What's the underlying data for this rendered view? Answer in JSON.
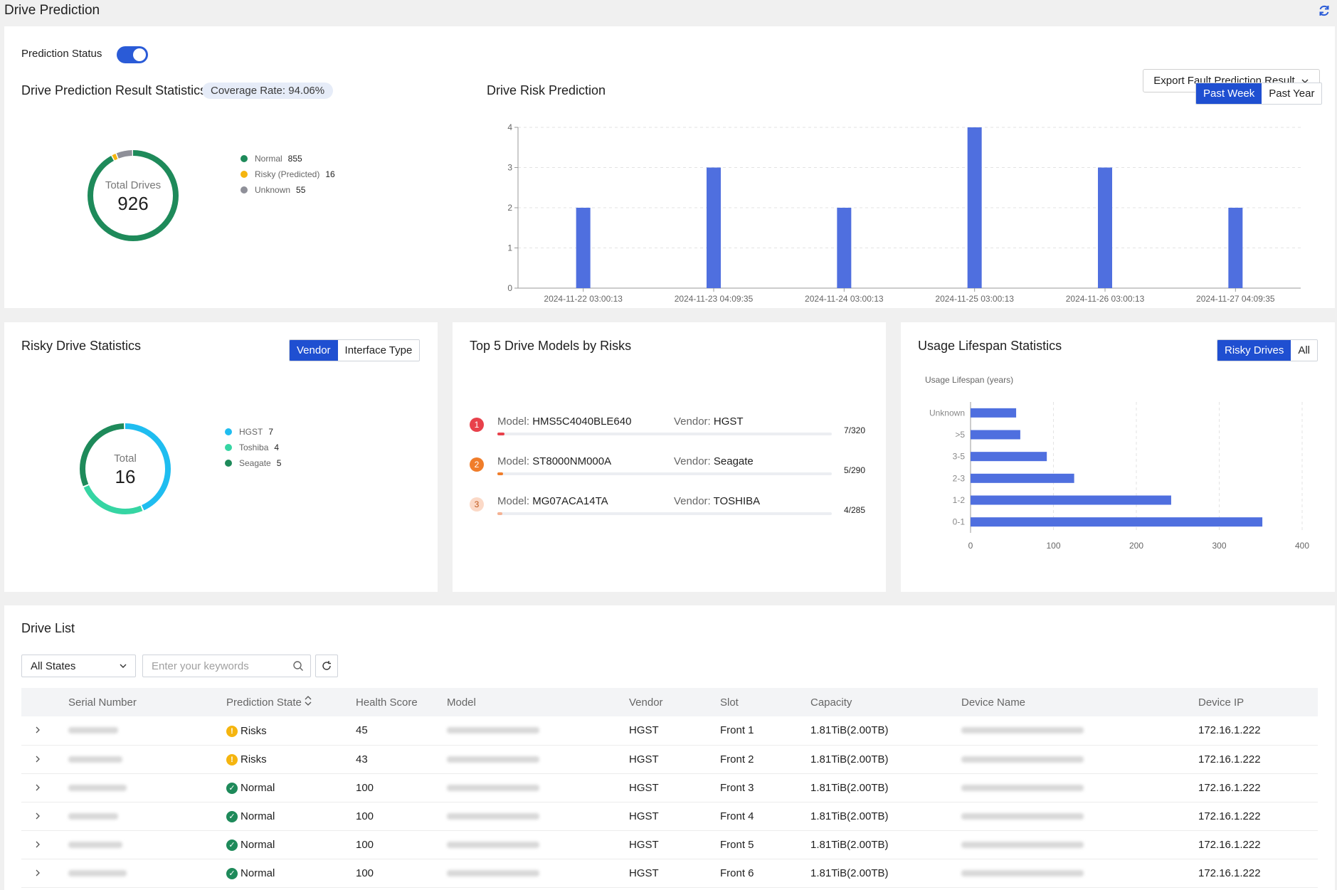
{
  "page": {
    "title": "Drive Prediction"
  },
  "prediction": {
    "status_label": "Prediction Status",
    "export_label": "Export Fault Prediction Result",
    "stats_title": "Drive Prediction Result Statistics",
    "coverage": "Coverage Rate: 94.06%",
    "donut": {
      "center_label": "Total Drives",
      "total": "926"
    },
    "legend": [
      {
        "label": "Normal",
        "value": "855",
        "color": "#1e8a5a"
      },
      {
        "label": "Risky (Predicted)",
        "value": "16",
        "color": "#f5b50f"
      },
      {
        "label": "Unknown",
        "value": "55",
        "color": "#8f9099"
      }
    ]
  },
  "risk_chart": {
    "title": "Drive Risk Prediction",
    "range_options": [
      "Past Week",
      "Past Year"
    ],
    "selected_range": "Past Week"
  },
  "chart_data": [
    {
      "type": "bar",
      "title": "Drive Risk Prediction",
      "categories": [
        "2024-11-22 03:00:13",
        "2024-11-23 04:09:35",
        "2024-11-24 03:00:13",
        "2024-11-25 03:00:13",
        "2024-11-26 03:00:13",
        "2024-11-27 04:09:35"
      ],
      "values": [
        2,
        3,
        2,
        4,
        3,
        2
      ],
      "ylim": [
        0,
        4
      ],
      "yticks": [
        "0",
        "1",
        "2",
        "3",
        "4"
      ],
      "color": "#4f6fdf",
      "grid": true
    },
    {
      "type": "pie",
      "title": "Risky Drive Statistics",
      "categories": [
        "HGST",
        "Toshiba",
        "Seagate"
      ],
      "values": [
        7,
        4,
        5
      ]
    },
    {
      "type": "bar",
      "orientation": "horizontal",
      "title": "Usage Lifespan Statistics",
      "ylabel": "Usage Lifespan (years)",
      "categories": [
        "Unknown",
        ">5",
        "3-5",
        "2-3",
        "1-2",
        "0-1"
      ],
      "values": [
        55,
        60,
        92,
        125,
        242,
        352
      ],
      "xlim": [
        0,
        400
      ],
      "xticks": [
        "0",
        "100",
        "200",
        "300",
        "400"
      ],
      "color": "#4f6fdf"
    }
  ],
  "risky": {
    "title": "Risky Drive Statistics",
    "tabs": [
      "Vendor",
      "Interface Type"
    ],
    "donut": {
      "center_label": "Total",
      "total": "16"
    },
    "legend": [
      {
        "label": "HGST",
        "value": "7",
        "color": "#1fbdf0"
      },
      {
        "label": "Toshiba",
        "value": "4",
        "color": "#36d5a3"
      },
      {
        "label": "Seagate",
        "value": "5",
        "color": "#1e8a5a"
      }
    ]
  },
  "top5": {
    "title": "Top 5 Drive Models by Risks",
    "model_prefix": "Model:",
    "vendor_prefix": "Vendor:",
    "items": [
      {
        "rank": "1",
        "model": "HMS5C4040BLE640",
        "vendor": "HGST",
        "fraction": "7/320",
        "ratio": 0.022,
        "rank_bg": "#e8414b",
        "rank_fg": "#ffffff",
        "bar": "#e8414b"
      },
      {
        "rank": "2",
        "model": "ST8000NM000A",
        "vendor": "Seagate",
        "fraction": "5/290",
        "ratio": 0.017,
        "rank_bg": "#f07d2a",
        "rank_fg": "#ffffff",
        "bar": "#f07d2a"
      },
      {
        "rank": "3",
        "model": "MG07ACA14TA",
        "vendor": "TOSHIBA",
        "fraction": "4/285",
        "ratio": 0.014,
        "rank_bg": "#fbd9c7",
        "rank_fg": "#c0581d",
        "bar": "#f5b293"
      }
    ]
  },
  "lifespan": {
    "title": "Usage Lifespan Statistics",
    "tabs": [
      "Risky Drives",
      "All"
    ],
    "axis_title": "Usage Lifespan (years)"
  },
  "drive_list": {
    "title": "Drive List",
    "state_select": "All States",
    "search_placeholder": "Enter your keywords",
    "columns": [
      "Serial Number",
      "Prediction State",
      "Health Score",
      "Model",
      "Vendor",
      "Slot",
      "Capacity",
      "Device Name",
      "Device IP"
    ],
    "rows": [
      {
        "state": "Risks",
        "state_type": "risk",
        "score": "45",
        "vendor": "HGST",
        "slot": "Front 1",
        "capacity": "1.81TiB(2.00TB)",
        "ip": "172.16.1.222"
      },
      {
        "state": "Risks",
        "state_type": "risk",
        "score": "43",
        "vendor": "HGST",
        "slot": "Front 2",
        "capacity": "1.81TiB(2.00TB)",
        "ip": "172.16.1.222"
      },
      {
        "state": "Normal",
        "state_type": "normal",
        "score": "100",
        "vendor": "HGST",
        "slot": "Front 3",
        "capacity": "1.81TiB(2.00TB)",
        "ip": "172.16.1.222"
      },
      {
        "state": "Normal",
        "state_type": "normal",
        "score": "100",
        "vendor": "HGST",
        "slot": "Front 4",
        "capacity": "1.81TiB(2.00TB)",
        "ip": "172.16.1.222"
      },
      {
        "state": "Normal",
        "state_type": "normal",
        "score": "100",
        "vendor": "HGST",
        "slot": "Front 5",
        "capacity": "1.81TiB(2.00TB)",
        "ip": "172.16.1.222"
      },
      {
        "state": "Normal",
        "state_type": "normal",
        "score": "100",
        "vendor": "HGST",
        "slot": "Front 6",
        "capacity": "1.81TiB(2.00TB)",
        "ip": "172.16.1.222"
      }
    ]
  }
}
